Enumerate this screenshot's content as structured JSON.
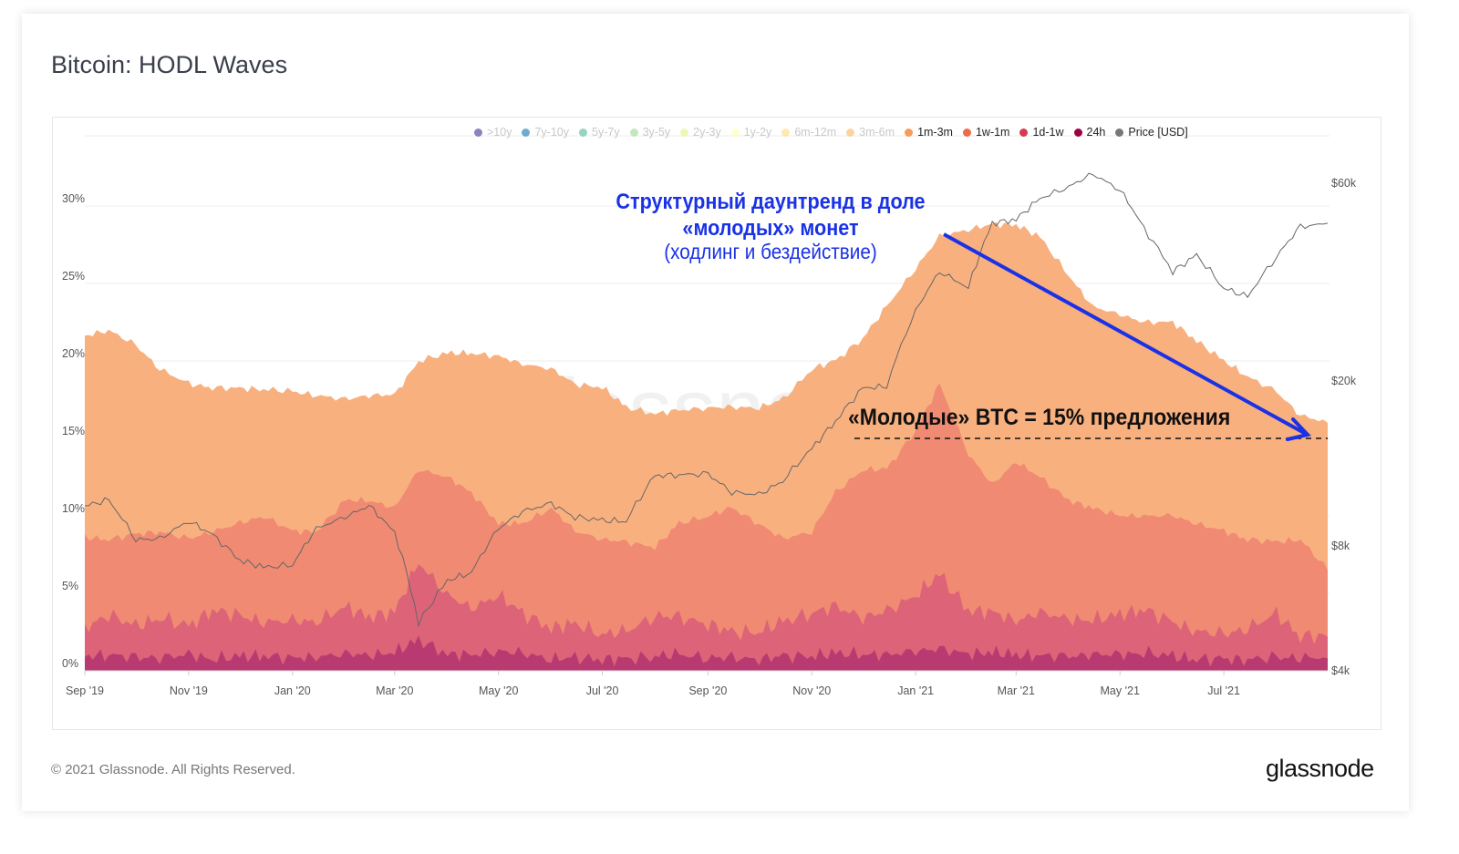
{
  "title": "Bitcoin: HODL Waves",
  "footer": "© 2021 Glassnode. All Rights Reserved.",
  "logo": "glassnode",
  "watermark": "glassnode",
  "legend": [
    {
      "label": ">10y",
      "color": "#5e4fa2",
      "active": false
    },
    {
      "label": "7y-10y",
      "color": "#3288bd",
      "active": false
    },
    {
      "label": "5y-7y",
      "color": "#66c2a5",
      "active": false
    },
    {
      "label": "3y-5y",
      "color": "#abdda4",
      "active": false
    },
    {
      "label": "2y-3y",
      "color": "#e6f598",
      "active": false
    },
    {
      "label": "1y-2y",
      "color": "#ffffbf",
      "active": false
    },
    {
      "label": "6m-12m",
      "color": "#fee08b",
      "active": false
    },
    {
      "label": "3m-6m",
      "color": "#fdc07a",
      "active": false
    },
    {
      "label": "1m-3m",
      "color": "#f89a5a",
      "active": true
    },
    {
      "label": "1w-1m",
      "color": "#ee6a48",
      "active": true
    },
    {
      "label": "1d-1w",
      "color": "#d73a4e",
      "active": true
    },
    {
      "label": "24h",
      "color": "#9e0142",
      "active": true
    },
    {
      "label": "Price [USD]",
      "color": "#777777",
      "active": true
    }
  ],
  "annotations": {
    "trend_title_line1": "Структурный даунтренд в доле",
    "trend_title_line2": "«молодых» монет",
    "trend_subtitle": "(ходлинг и бездействие)",
    "level_label": "«Молодые» BTC = 15% предложения",
    "level_value": 15,
    "arrow_color": "#1a32e6"
  },
  "chart_data": {
    "type": "area",
    "stacked": true,
    "title": "Bitcoin: HODL Waves",
    "x_ticks": [
      "Sep '19",
      "Nov '19",
      "Jan '20",
      "Mar '20",
      "May '20",
      "Jul '20",
      "Sep '20",
      "Nov '20",
      "Jan '21",
      "Mar '21",
      "May '21",
      "Jul '21"
    ],
    "y_left": {
      "ticks": [
        "0%",
        "5%",
        "10%",
        "15%",
        "20%",
        "25%",
        "30%"
      ],
      "range": [
        0,
        30
      ],
      "unit": "%"
    },
    "y_right": {
      "ticks": [
        "$4k",
        "$8k",
        "$20k",
        "$60k"
      ],
      "scale": "log",
      "range": [
        4000,
        60000
      ]
    },
    "grid": true,
    "legend_position": "top-right",
    "x": [
      "2019-09-01",
      "2019-09-15",
      "2019-10-01",
      "2019-10-15",
      "2019-11-01",
      "2019-11-15",
      "2019-12-01",
      "2019-12-15",
      "2020-01-01",
      "2020-01-15",
      "2020-02-01",
      "2020-02-15",
      "2020-03-01",
      "2020-03-15",
      "2020-04-01",
      "2020-04-15",
      "2020-05-01",
      "2020-05-15",
      "2020-06-01",
      "2020-06-15",
      "2020-07-01",
      "2020-07-15",
      "2020-08-01",
      "2020-08-15",
      "2020-09-01",
      "2020-09-15",
      "2020-10-01",
      "2020-10-15",
      "2020-11-01",
      "2020-11-15",
      "2020-12-01",
      "2020-12-15",
      "2021-01-01",
      "2021-01-15",
      "2021-02-01",
      "2021-02-15",
      "2021-03-01",
      "2021-03-15",
      "2021-04-01",
      "2021-04-15",
      "2021-05-01",
      "2021-05-15",
      "2021-06-01",
      "2021-06-15",
      "2021-07-01",
      "2021-07-15",
      "2021-08-01",
      "2021-08-15",
      "2021-08-31"
    ],
    "series": [
      {
        "name": "24h",
        "color": "#b83a71",
        "values": [
          0.9,
          1.1,
          0.8,
          0.9,
          1.0,
          0.8,
          0.9,
          1.0,
          0.8,
          0.9,
          1.1,
          1.0,
          1.2,
          2.0,
          1.1,
          1.0,
          1.3,
          1.1,
          0.8,
          0.8,
          0.8,
          0.7,
          1.0,
          1.0,
          0.9,
          0.8,
          0.8,
          0.9,
          1.0,
          1.1,
          1.1,
          1.0,
          1.3,
          1.4,
          1.1,
          1.2,
          1.0,
          1.0,
          0.9,
          1.1,
          1.0,
          1.2,
          0.9,
          0.8,
          0.7,
          0.8,
          0.8,
          0.9,
          0.8
        ]
      },
      {
        "name": "1d-1w",
        "color": "#dc6378",
        "values": [
          1.8,
          2.6,
          2.0,
          2.6,
          1.8,
          3.2,
          2.6,
          2.2,
          2.4,
          2.3,
          3.0,
          2.5,
          2.6,
          5.0,
          3.8,
          3.0,
          3.6,
          2.6,
          2.0,
          2.2,
          1.6,
          1.8,
          2.6,
          2.4,
          2.2,
          1.6,
          1.8,
          2.2,
          2.8,
          3.0,
          2.4,
          2.8,
          3.6,
          4.8,
          2.8,
          2.6,
          2.2,
          2.8,
          2.4,
          2.2,
          2.6,
          2.8,
          2.2,
          1.8,
          1.6,
          2.0,
          2.8,
          1.4,
          1.4
        ]
      },
      {
        "name": "1w-1m",
        "color": "#f08a72",
        "values": [
          5.9,
          4.8,
          6.0,
          5.5,
          5.7,
          5.0,
          6.0,
          6.8,
          5.8,
          5.8,
          6.9,
          7.5,
          6.7,
          6.0,
          7.6,
          7.5,
          4.6,
          5.8,
          7.7,
          6.0,
          6.1,
          5.8,
          4.4,
          6.1,
          6.9,
          8.1,
          6.9,
          5.4,
          5.2,
          7.4,
          9.5,
          9.2,
          10.6,
          12.3,
          10.1,
          8.2,
          10.3,
          8.7,
          7.7,
          7.2,
          6.4,
          6.0,
          6.9,
          6.9,
          6.7,
          5.7,
          4.7,
          6.2,
          4.3
        ]
      },
      {
        "name": "1m-3m",
        "color": "#f9b07f",
        "values": [
          13.0,
          13.5,
          12.2,
          10.5,
          10.0,
          9.3,
          8.7,
          8.2,
          9.0,
          8.8,
          6.5,
          6.8,
          7.3,
          7.0,
          8.0,
          9.0,
          10.8,
          10.3,
          9.0,
          9.5,
          9.8,
          8.7,
          8.6,
          7.3,
          7.0,
          6.5,
          7.5,
          9.0,
          10.5,
          8.5,
          8.5,
          10.5,
          10.5,
          9.5,
          14.5,
          16.8,
          15.3,
          15.5,
          14.5,
          13.0,
          13.0,
          12.5,
          12.5,
          11.8,
          11.0,
          10.5,
          9.7,
          8.0,
          9.5
        ]
      }
    ],
    "price": {
      "name": "Price [USD]",
      "color": "#777777",
      "values": [
        10000,
        10300,
        8300,
        8300,
        9200,
        8500,
        7400,
        7100,
        7200,
        8800,
        9400,
        10000,
        8600,
        5200,
        6600,
        6900,
        8800,
        9700,
        10100,
        9400,
        9200,
        9200,
        11800,
        11900,
        11900,
        10800,
        10600,
        11500,
        13700,
        16000,
        19200,
        19400,
        29400,
        36700,
        33500,
        48000,
        49000,
        55000,
        58800,
        63000,
        57800,
        46500,
        36700,
        40100,
        33500,
        31800,
        39900,
        47000,
        48000
      ]
    }
  }
}
